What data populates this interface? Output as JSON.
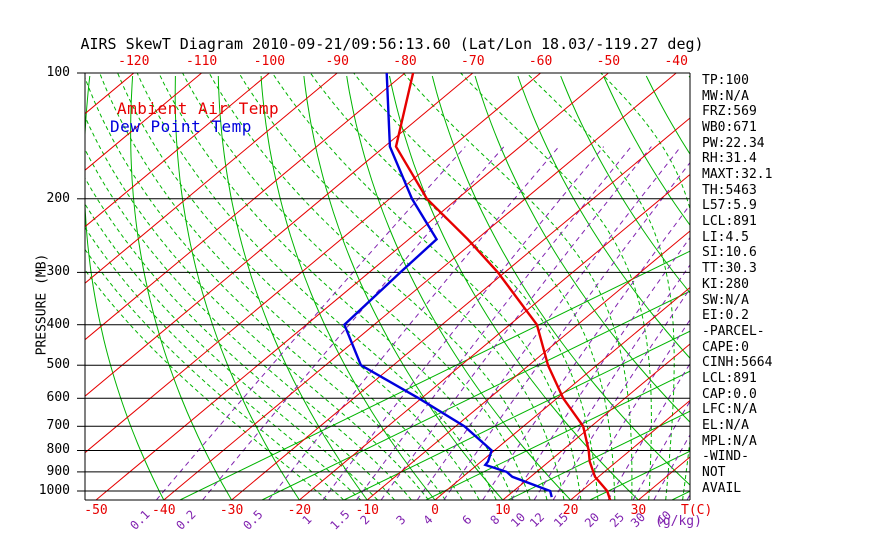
{
  "title": "AIRS SkewT Diagram 2010-09-21/09:56:13.60 (Lat/Lon 18.03/-119.27 deg)",
  "legend": {
    "ambient": "Ambient Air Temp",
    "dew_point": "Dew Point Temp"
  },
  "axes": {
    "pressure_label": "PRESSURE (MB)",
    "temp_unit": "T(C)",
    "mixing_unit": "(g/kg)"
  },
  "colors": {
    "temperature_curve": "#e60000",
    "dew_point_curve": "#0000dd",
    "isotherm": "#e60000",
    "adiabat": "#00b400",
    "mixing_ratio": "#8224b0",
    "isobar": "#000000"
  },
  "stats_panel": {
    "rows": [
      "TP:100",
      "MW:N/A",
      "FRZ:569",
      "WB0:671",
      "PW:22.34",
      "RH:31.4",
      "MAXT:32.1",
      "TH:5463",
      "L57:5.9",
      "LCL:891",
      "LI:4.5",
      "SI:10.6",
      "TT:30.3",
      "KI:280",
      "SW:N/A",
      "EI:0.2",
      "-PARCEL-",
      "CAPE:0",
      "CINH:5664",
      "LCL:891",
      "CAP:0.0",
      "LFC:N/A",
      "EL:N/A",
      "MPL:N/A",
      "-WIND-",
      "NOT",
      "AVAIL"
    ]
  },
  "chart_data": {
    "type": "line",
    "title": "AIRS SkewT Diagram 2010-09-21/09:56:13.60 (Lat/Lon 18.03/-119.27 deg)",
    "x_axis": {
      "unit": "T(C)",
      "ticks_bottom": [
        -50,
        -40,
        -30,
        -20,
        -10,
        0,
        10,
        20,
        30
      ],
      "ticks_top": [
        -120,
        -110,
        -100,
        -90,
        -80,
        -70,
        -60,
        -50,
        -40
      ]
    },
    "y_axis": {
      "label": "PRESSURE (MB)",
      "scale": "log",
      "ticks": [
        100,
        200,
        300,
        400,
        500,
        600,
        700,
        800,
        900,
        1000
      ],
      "range": [
        100,
        1050
      ]
    },
    "grid": {
      "isotherm_step_c": 10,
      "dry_adiabat_step_c": 10,
      "moist_adiabat_step_c": 2.5,
      "mixing_ratio_values_gkg": [
        0.1,
        0.2,
        0.5,
        1,
        1.5,
        2,
        3,
        4,
        6,
        8,
        10,
        12,
        15,
        20,
        25,
        30,
        40
      ]
    },
    "series": [
      {
        "name": "Ambient Air Temp",
        "color": "#e60000",
        "points_p_T": [
          [
            1050,
            25.8
          ],
          [
            1000,
            23.8
          ],
          [
            925,
            19.5
          ],
          [
            850,
            16.0
          ],
          [
            800,
            13.9
          ],
          [
            700,
            8.8
          ],
          [
            600,
            0.9
          ],
          [
            500,
            -7.2
          ],
          [
            400,
            -16.0
          ],
          [
            300,
            -31.0
          ],
          [
            250,
            -41.3
          ],
          [
            200,
            -54.5
          ],
          [
            150,
            -68.3
          ],
          [
            100,
            -78.8
          ]
        ]
      },
      {
        "name": "Dew Point Temp",
        "color": "#0000dd",
        "points_p_T": [
          [
            1034,
            16.7
          ],
          [
            1000,
            15.4
          ],
          [
            925,
            7.3
          ],
          [
            900,
            5.6
          ],
          [
            866,
            1.2
          ],
          [
            850,
            1.0
          ],
          [
            800,
            -0.4
          ],
          [
            700,
            -8.7
          ],
          [
            600,
            -20.4
          ],
          [
            500,
            -34.8
          ],
          [
            400,
            -44.4
          ],
          [
            300,
            -45.4
          ],
          [
            250,
            -45.9
          ],
          [
            200,
            -56.7
          ],
          [
            150,
            -69.2
          ],
          [
            100,
            -82.7
          ]
        ]
      }
    ]
  }
}
